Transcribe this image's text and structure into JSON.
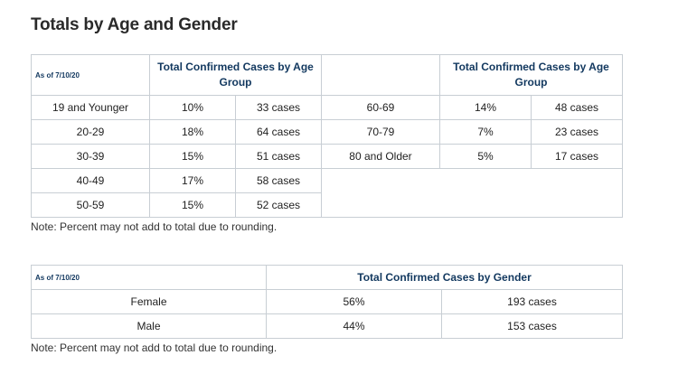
{
  "title": "Totals by Age and Gender",
  "age_table": {
    "as_of": "As of 7/10/20",
    "header_left": "Total Confirmed Cases by Age Group",
    "header_right": "Total Confirmed Cases by Age Group",
    "left_rows": [
      {
        "group": "19 and Younger",
        "percent": "10%",
        "cases": "33 cases"
      },
      {
        "group": "20-29",
        "percent": "18%",
        "cases": "64 cases"
      },
      {
        "group": "30-39",
        "percent": "15%",
        "cases": "51 cases"
      },
      {
        "group": "40-49",
        "percent": "17%",
        "cases": "58 cases"
      },
      {
        "group": "50-59",
        "percent": "15%",
        "cases": "52 cases"
      }
    ],
    "right_rows": [
      {
        "group": "60-69",
        "percent": "14%",
        "cases": "48 cases"
      },
      {
        "group": "70-79",
        "percent": "7%",
        "cases": "23 cases"
      },
      {
        "group": "80 and Older",
        "percent": "5%",
        "cases": "17 cases"
      }
    ],
    "note": "Note: Percent may not add to total due to rounding."
  },
  "gender_table": {
    "as_of": "As of 7/10/20",
    "header": "Total Confirmed Cases by Gender",
    "rows": [
      {
        "gender": "Female",
        "percent": "56%",
        "cases": "193 cases"
      },
      {
        "gender": "Male",
        "percent": "44%",
        "cases": "153 cases"
      }
    ],
    "note": "Note: Percent may not add to total due to rounding."
  }
}
